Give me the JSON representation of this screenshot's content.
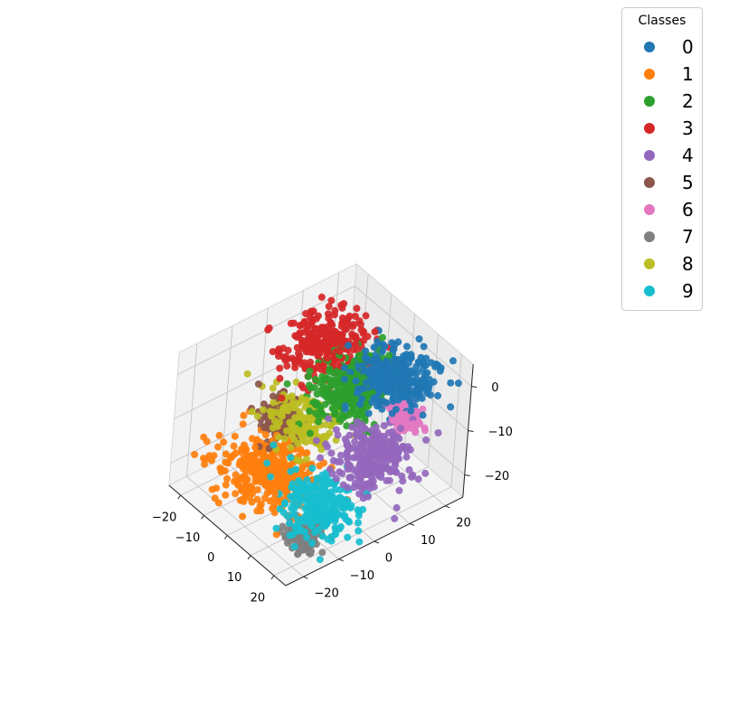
{
  "chart_data": {
    "type": "scatter",
    "projection": "3d",
    "grid": true,
    "legend": {
      "title": "Classes",
      "placement": "top-right"
    },
    "axes": {
      "x": {
        "ticks": [
          -20,
          -10,
          0,
          10,
          20
        ],
        "tick_labels": [
          "−20",
          "−10",
          "0",
          "10",
          "20"
        ],
        "range": [
          -25,
          25
        ]
      },
      "y": {
        "ticks": [
          -20,
          -10,
          0,
          10,
          20
        ],
        "tick_labels": [
          "−20",
          "−10",
          "0",
          "10",
          "20"
        ],
        "range": [
          -25,
          25
        ]
      },
      "z": {
        "ticks": [
          -20,
          -10,
          0
        ],
        "tick_labels": [
          "−20",
          "−10",
          "0"
        ],
        "range": [
          -25,
          5
        ]
      }
    },
    "series": [
      {
        "name": "0",
        "color": "#1f77b4",
        "center": [
          12,
          12,
          1
        ],
        "spread": [
          6,
          4.5,
          2.0
        ],
        "count": 300
      },
      {
        "name": "1",
        "color": "#ff7f0e",
        "center": [
          -6,
          -10,
          -19
        ],
        "spread": [
          7.5,
          5.5,
          1.5
        ],
        "count": 360
      },
      {
        "name": "2",
        "color": "#2ca02c",
        "center": [
          1,
          7,
          -4
        ],
        "spread": [
          4.5,
          5,
          3.0
        ],
        "count": 300
      },
      {
        "name": "3",
        "color": "#d62728",
        "center": [
          -14,
          10,
          -2
        ],
        "spread": [
          5.5,
          5,
          2.5
        ],
        "count": 300
      },
      {
        "name": "4",
        "color": "#9467bd",
        "center": [
          20,
          2,
          -9
        ],
        "spread": [
          5,
          4.5,
          2.5
        ],
        "count": 280
      },
      {
        "name": "5",
        "color": "#8c564b",
        "center": [
          -14,
          -2,
          -15
        ],
        "spread": [
          3,
          2.5,
          2.0
        ],
        "count": 120
      },
      {
        "name": "6",
        "color": "#e377c2",
        "center": [
          20,
          10,
          -3
        ],
        "spread": [
          3,
          1.5,
          1.0
        ],
        "count": 90
      },
      {
        "name": "7",
        "color": "#7f7f7f",
        "center": [
          15,
          -14,
          -23
        ],
        "spread": [
          3,
          2,
          1.0
        ],
        "count": 120
      },
      {
        "name": "8",
        "color": "#bcbd22",
        "center": [
          -6,
          -2,
          -11
        ],
        "spread": [
          6,
          3,
          1.5
        ],
        "count": 160
      },
      {
        "name": "9",
        "color": "#17becf",
        "center": [
          16,
          -10,
          -17
        ],
        "spread": [
          5.5,
          3.5,
          2.0
        ],
        "count": 260
      }
    ]
  }
}
